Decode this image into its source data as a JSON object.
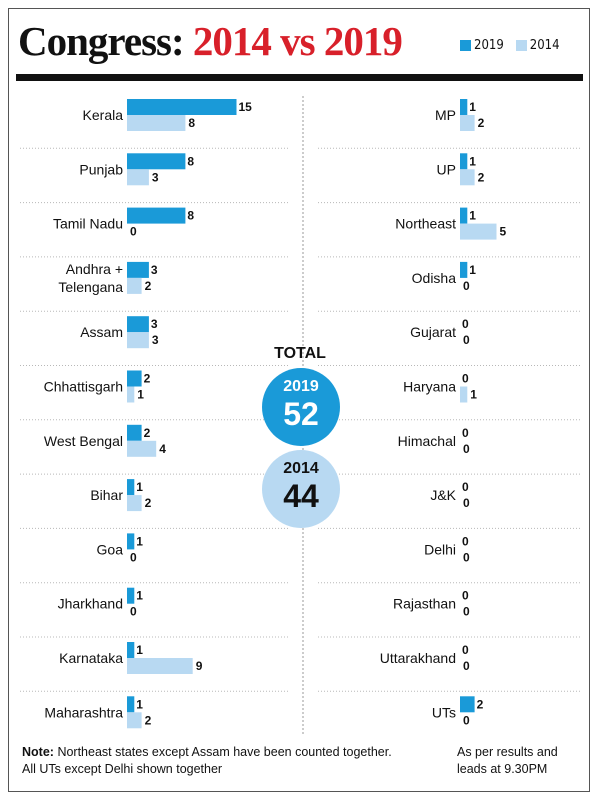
{
  "title": {
    "part1": "Congress:",
    "part2": "2014 vs 2019"
  },
  "colors": {
    "c2019": "#1a9ad8",
    "c2014": "#b8d9f2",
    "title_accent": "#d8202a"
  },
  "legend": [
    {
      "label": "2019",
      "color": "#1a9ad8"
    },
    {
      "label": "2014",
      "color": "#b8d9f2"
    }
  ],
  "totals": {
    "label": "TOTAL",
    "y2019": {
      "year": "2019",
      "value": "52"
    },
    "y2014": {
      "year": "2014",
      "value": "44"
    }
  },
  "note": {
    "heading": "Note:",
    "text": "Northeast states except Assam have been counted together. All UTs except Delhi shown together"
  },
  "asof": "As per results and leads at 9.30PM",
  "chart_data": {
    "type": "bar",
    "orientation": "horizontal",
    "series": [
      {
        "name": "2019"
      },
      {
        "name": "2014"
      }
    ],
    "left_panel": [
      {
        "state": [
          "Kerala"
        ],
        "v2019": 15,
        "v2014": 8
      },
      {
        "state": [
          "Punjab"
        ],
        "v2019": 8,
        "v2014": 3
      },
      {
        "state": [
          "Tamil Nadu"
        ],
        "v2019": 8,
        "v2014": 0
      },
      {
        "state": [
          "Andhra +",
          "Telengana"
        ],
        "v2019": 3,
        "v2014": 2
      },
      {
        "state": [
          "Assam"
        ],
        "v2019": 3,
        "v2014": 3
      },
      {
        "state": [
          "Chhattisgarh"
        ],
        "v2019": 2,
        "v2014": 1
      },
      {
        "state": [
          "West Bengal"
        ],
        "v2019": 2,
        "v2014": 4
      },
      {
        "state": [
          "Bihar"
        ],
        "v2019": 1,
        "v2014": 2
      },
      {
        "state": [
          "Goa"
        ],
        "v2019": 1,
        "v2014": 0
      },
      {
        "state": [
          "Jharkhand"
        ],
        "v2019": 1,
        "v2014": 0
      },
      {
        "state": [
          "Karnataka"
        ],
        "v2019": 1,
        "v2014": 9
      },
      {
        "state": [
          "Maharashtra"
        ],
        "v2019": 1,
        "v2014": 2
      }
    ],
    "right_panel": [
      {
        "state": [
          "MP"
        ],
        "v2019": 1,
        "v2014": 2
      },
      {
        "state": [
          "UP"
        ],
        "v2019": 1,
        "v2014": 2
      },
      {
        "state": [
          "Northeast"
        ],
        "v2019": 1,
        "v2014": 5
      },
      {
        "state": [
          "Odisha"
        ],
        "v2019": 1,
        "v2014": 0
      },
      {
        "state": [
          "Gujarat"
        ],
        "v2019": 0,
        "v2014": 0
      },
      {
        "state": [
          "Haryana"
        ],
        "v2019": 0,
        "v2014": 1
      },
      {
        "state": [
          "Himachal"
        ],
        "v2019": 0,
        "v2014": 0
      },
      {
        "state": [
          "J&K"
        ],
        "v2019": 0,
        "v2014": 0
      },
      {
        "state": [
          "Delhi"
        ],
        "v2019": 0,
        "v2014": 0
      },
      {
        "state": [
          "Rajasthan"
        ],
        "v2019": 0,
        "v2014": 0
      },
      {
        "state": [
          "Uttarakhand"
        ],
        "v2019": 0,
        "v2014": 0
      },
      {
        "state": [
          "UTs"
        ],
        "v2019": 2,
        "v2014": 0
      }
    ]
  }
}
